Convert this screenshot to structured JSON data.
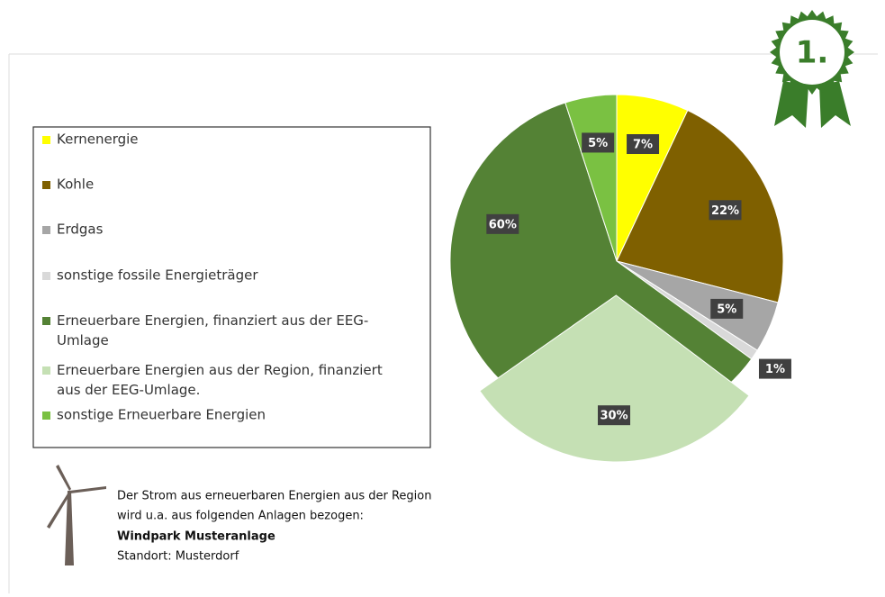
{
  "chart_data": {
    "type": "pie",
    "categories": [
      "Kernenergie",
      "Kohle",
      "Erdgas",
      "sonstige fossile Energieträger",
      "Erneuerbare Energien, finanziert aus der EEG-Umlage",
      "Erneuerbare Energien aus der Region, finanziert aus der EEG-Umlage.",
      "sonstige Erneuerbare Energien"
    ],
    "values": [
      7,
      22,
      5,
      1,
      60,
      30,
      5
    ],
    "value_labels": [
      "7%",
      "22%",
      "5%",
      "1%",
      "60%",
      "30%",
      "5%"
    ],
    "colors": [
      "#ffff00",
      "#7f6000",
      "#a6a6a6",
      "#d9d9d9",
      "#548235",
      "#c5e0b4",
      "#7ac142"
    ],
    "inner_of": [
      null,
      null,
      null,
      null,
      null,
      4,
      null
    ],
    "explode": [
      false,
      false,
      false,
      false,
      false,
      true,
      false
    ]
  },
  "badge": "1.",
  "info": {
    "line1": "Der Strom aus erneuerbaren Energien aus der Region",
    "line2": "wird u.a. aus folgenden Anlagen bezogen:",
    "plant": "Windpark Musteranlage",
    "location": "Standort: Musterdorf"
  }
}
